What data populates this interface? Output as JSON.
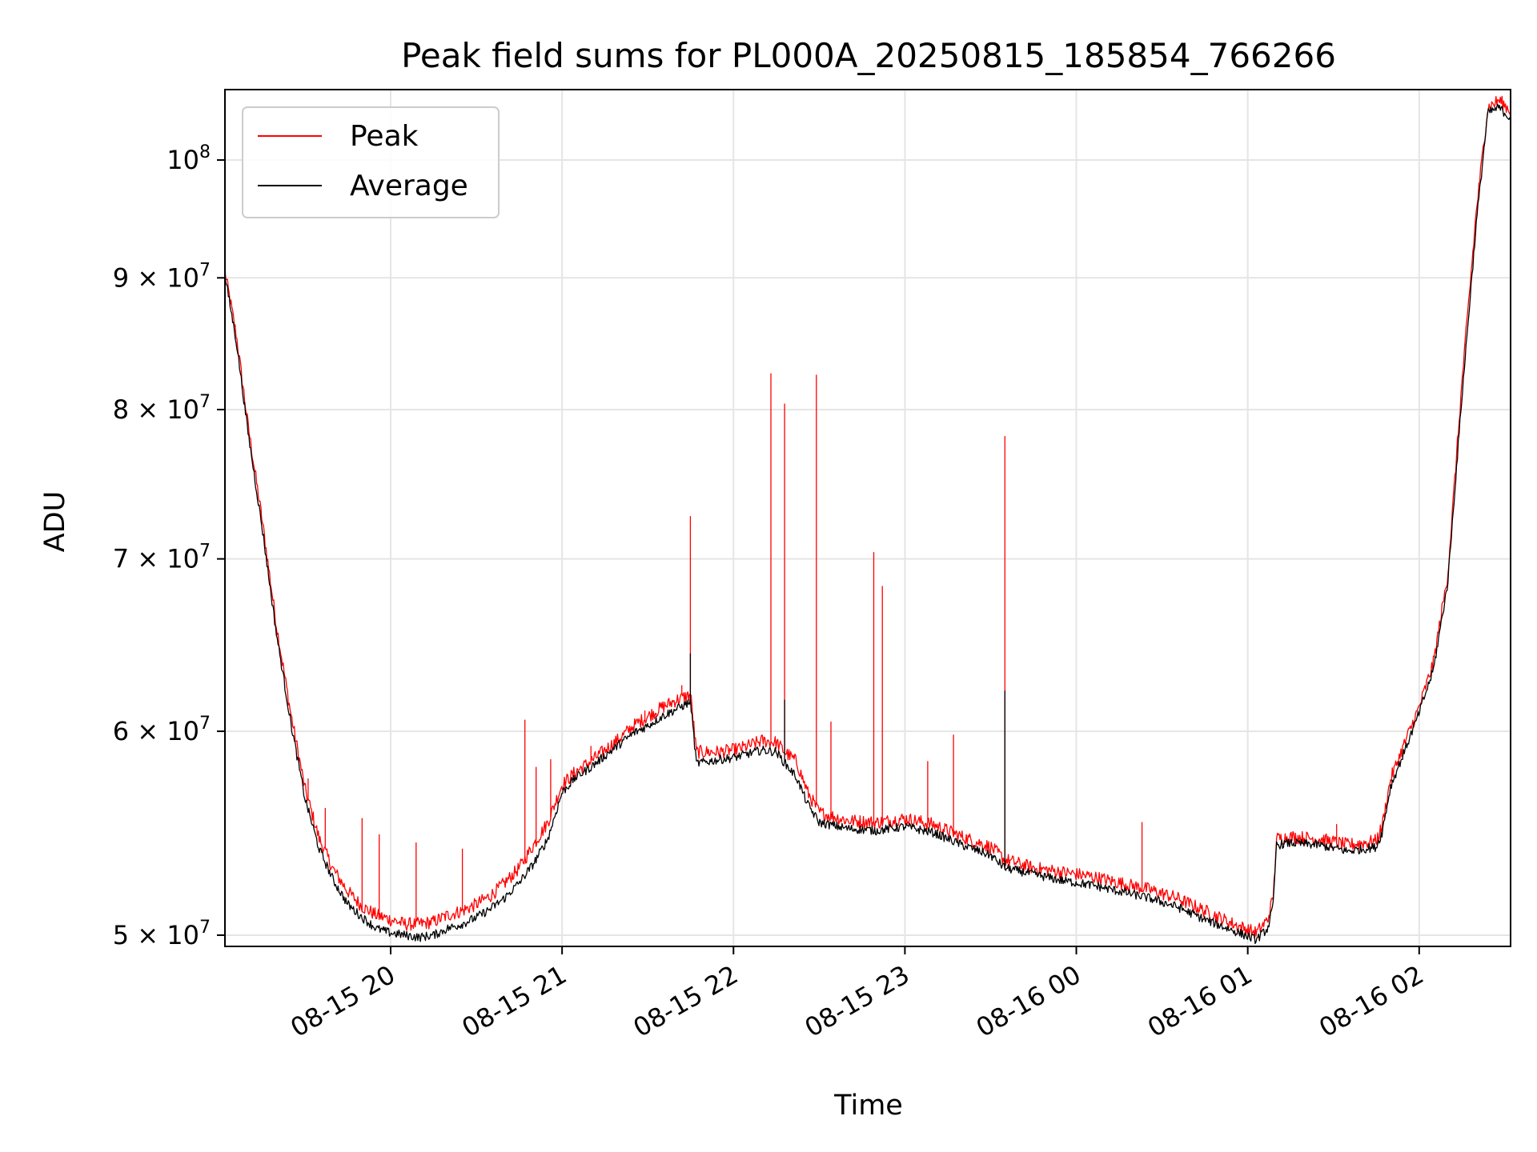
{
  "chart_data": {
    "type": "line",
    "title": "Peak field sums for PL000A_20250815_185854_766266",
    "xlabel": "Time",
    "ylabel": "ADU",
    "yscale": "log",
    "xlim": [
      "2025-08-15 19:02",
      "2025-08-16 02:32"
    ],
    "ylim": [
      49500000,
      106500000
    ],
    "grid": true,
    "legend_position": "top-left",
    "x_ticks": [
      {
        "t": "2025-08-15 20:00",
        "label": "08-15 20"
      },
      {
        "t": "2025-08-15 21:00",
        "label": "08-15 21"
      },
      {
        "t": "2025-08-15 22:00",
        "label": "08-15 22"
      },
      {
        "t": "2025-08-15 23:00",
        "label": "08-15 23"
      },
      {
        "t": "2025-08-16 00:00",
        "label": "08-16 00"
      },
      {
        "t": "2025-08-16 01:00",
        "label": "08-16 01"
      },
      {
        "t": "2025-08-16 02:00",
        "label": "08-16 02"
      }
    ],
    "y_ticks": [
      {
        "value": 50000000,
        "mantissa": "5",
        "exp": "7"
      },
      {
        "value": 60000000,
        "mantissa": "6",
        "exp": "7"
      },
      {
        "value": 70000000,
        "mantissa": "7",
        "exp": "7"
      },
      {
        "value": 80000000,
        "mantissa": "8",
        "exp": "7"
      },
      {
        "value": 90000000,
        "mantissa": "9",
        "exp": "7"
      },
      {
        "value": 100000000,
        "mantissa": "",
        "exp": "8"
      }
    ],
    "series": [
      {
        "name": "Peak",
        "color": "#ff0000",
        "points": [
          [
            "2025-08-15 19:02",
            90500000
          ],
          [
            "2025-08-15 19:06",
            85500000
          ],
          [
            "2025-08-15 19:10",
            79000000
          ],
          [
            "2025-08-15 19:15",
            72500000
          ],
          [
            "2025-08-15 19:20",
            66000000
          ],
          [
            "2025-08-15 19:25",
            61000000
          ],
          [
            "2025-08-15 19:30",
            57000000
          ],
          [
            "2025-08-15 19:35",
            54500000
          ],
          [
            "2025-08-15 19:40",
            53000000
          ],
          [
            "2025-08-15 19:45",
            52000000
          ],
          [
            "2025-08-15 19:50",
            51300000
          ],
          [
            "2025-08-15 19:55",
            50900000
          ],
          [
            "2025-08-15 20:00",
            50700000
          ],
          [
            "2025-08-15 20:05",
            50500000
          ],
          [
            "2025-08-15 20:10",
            50500000
          ],
          [
            "2025-08-15 20:15",
            50600000
          ],
          [
            "2025-08-15 20:20",
            50900000
          ],
          [
            "2025-08-15 20:25",
            51100000
          ],
          [
            "2025-08-15 20:30",
            51400000
          ],
          [
            "2025-08-15 20:35",
            51800000
          ],
          [
            "2025-08-15 20:40",
            52400000
          ],
          [
            "2025-08-15 20:45",
            53100000
          ],
          [
            "2025-08-15 20:50",
            54200000
          ],
          [
            "2025-08-15 20:55",
            55300000
          ],
          [
            "2025-08-15 21:00",
            57200000
          ],
          [
            "2025-08-15 21:05",
            57900000
          ],
          [
            "2025-08-15 21:10",
            58400000
          ],
          [
            "2025-08-15 21:15",
            59000000
          ],
          [
            "2025-08-15 21:20",
            59600000
          ],
          [
            "2025-08-15 21:25",
            60300000
          ],
          [
            "2025-08-15 21:30",
            60800000
          ],
          [
            "2025-08-15 21:35",
            61300000
          ],
          [
            "2025-08-15 21:40",
            61700000
          ],
          [
            "2025-08-15 21:45",
            62000000
          ],
          [
            "2025-08-15 21:47",
            58900000
          ],
          [
            "2025-08-15 21:55",
            58900000
          ],
          [
            "2025-08-15 22:00",
            59000000
          ],
          [
            "2025-08-15 22:05",
            59200000
          ],
          [
            "2025-08-15 22:10",
            59500000
          ],
          [
            "2025-08-15 22:15",
            59400000
          ],
          [
            "2025-08-15 22:18",
            58900000
          ],
          [
            "2025-08-15 22:22",
            58400000
          ],
          [
            "2025-08-15 22:26",
            56800000
          ],
          [
            "2025-08-15 22:30",
            55800000
          ],
          [
            "2025-08-15 22:40",
            55400000
          ],
          [
            "2025-08-15 22:50",
            55300000
          ],
          [
            "2025-08-15 23:00",
            55500000
          ],
          [
            "2025-08-15 23:10",
            55200000
          ],
          [
            "2025-08-15 23:20",
            54600000
          ],
          [
            "2025-08-15 23:30",
            54100000
          ],
          [
            "2025-08-15 23:35",
            53500000
          ],
          [
            "2025-08-15 23:45",
            53100000
          ],
          [
            "2025-08-15 23:55",
            52900000
          ],
          [
            "2025-08-16 00:05",
            52700000
          ],
          [
            "2025-08-16 00:15",
            52400000
          ],
          [
            "2025-08-16 00:25",
            52100000
          ],
          [
            "2025-08-16 00:35",
            51700000
          ],
          [
            "2025-08-16 00:45",
            51100000
          ],
          [
            "2025-08-16 00:55",
            50500000
          ],
          [
            "2025-08-16 01:03",
            50100000
          ],
          [
            "2025-08-16 01:07",
            50700000
          ],
          [
            "2025-08-16 01:09",
            51800000
          ],
          [
            "2025-08-16 01:10",
            54500000
          ],
          [
            "2025-08-16 01:15",
            54600000
          ],
          [
            "2025-08-16 01:25",
            54500000
          ],
          [
            "2025-08-16 01:35",
            54200000
          ],
          [
            "2025-08-16 01:45",
            54400000
          ],
          [
            "2025-08-16 01:47",
            55100000
          ],
          [
            "2025-08-16 01:50",
            57500000
          ],
          [
            "2025-08-16 01:55",
            59400000
          ],
          [
            "2025-08-16 02:00",
            61300000
          ],
          [
            "2025-08-16 02:05",
            63800000
          ],
          [
            "2025-08-16 02:10",
            69000000
          ],
          [
            "2025-08-16 02:15",
            82000000
          ],
          [
            "2025-08-16 02:20",
            95500000
          ],
          [
            "2025-08-16 02:24",
            104800000
          ],
          [
            "2025-08-16 02:28",
            105500000
          ],
          [
            "2025-08-16 02:32",
            104500000
          ]
        ],
        "spikes": [
          [
            "2025-08-15 19:31",
            57500000
          ],
          [
            "2025-08-15 19:37",
            56000000
          ],
          [
            "2025-08-15 19:50",
            55500000
          ],
          [
            "2025-08-15 19:56",
            54700000
          ],
          [
            "2025-08-15 20:09",
            54300000
          ],
          [
            "2025-08-15 20:25",
            54000000
          ],
          [
            "2025-08-15 20:47",
            60600000
          ],
          [
            "2025-08-15 20:51",
            58100000
          ],
          [
            "2025-08-15 20:56",
            58500000
          ],
          [
            "2025-08-15 21:10",
            59200000
          ],
          [
            "2025-08-15 21:29",
            61100000
          ],
          [
            "2025-08-15 21:42",
            62500000
          ],
          [
            "2025-08-15 21:45",
            72700000
          ],
          [
            "2025-08-15 22:13",
            82600000
          ],
          [
            "2025-08-15 22:18",
            80400000
          ],
          [
            "2025-08-15 22:29",
            82500000
          ],
          [
            "2025-08-15 22:34",
            60500000
          ],
          [
            "2025-08-15 22:49",
            70400000
          ],
          [
            "2025-08-15 22:52",
            68300000
          ],
          [
            "2025-08-15 23:08",
            58400000
          ],
          [
            "2025-08-15 23:17",
            59800000
          ],
          [
            "2025-08-15 23:35",
            78100000
          ],
          [
            "2025-08-16 00:23",
            55300000
          ],
          [
            "2025-08-16 01:31",
            55200000
          ]
        ]
      },
      {
        "name": "Average",
        "color": "#000000",
        "points": [
          [
            "2025-08-15 19:02",
            90200000
          ],
          [
            "2025-08-15 19:06",
            85000000
          ],
          [
            "2025-08-15 19:10",
            78500000
          ],
          [
            "2025-08-15 19:15",
            72000000
          ],
          [
            "2025-08-15 19:20",
            65500000
          ],
          [
            "2025-08-15 19:25",
            60500000
          ],
          [
            "2025-08-15 19:30",
            56500000
          ],
          [
            "2025-08-15 19:35",
            54000000
          ],
          [
            "2025-08-15 19:40",
            52500000
          ],
          [
            "2025-08-15 19:45",
            51400000
          ],
          [
            "2025-08-15 19:50",
            50800000
          ],
          [
            "2025-08-15 19:55",
            50300000
          ],
          [
            "2025-08-15 20:00",
            50100000
          ],
          [
            "2025-08-15 20:05",
            50000000
          ],
          [
            "2025-08-15 20:10",
            49900000
          ],
          [
            "2025-08-15 20:15",
            50000000
          ],
          [
            "2025-08-15 20:20",
            50300000
          ],
          [
            "2025-08-15 20:25",
            50500000
          ],
          [
            "2025-08-15 20:30",
            50800000
          ],
          [
            "2025-08-15 20:35",
            51200000
          ],
          [
            "2025-08-15 20:40",
            51700000
          ],
          [
            "2025-08-15 20:45",
            52400000
          ],
          [
            "2025-08-15 20:50",
            53300000
          ],
          [
            "2025-08-15 20:55",
            54500000
          ],
          [
            "2025-08-15 21:00",
            56800000
          ],
          [
            "2025-08-15 21:05",
            57600000
          ],
          [
            "2025-08-15 21:10",
            58100000
          ],
          [
            "2025-08-15 21:15",
            58700000
          ],
          [
            "2025-08-15 21:20",
            59300000
          ],
          [
            "2025-08-15 21:25",
            59900000
          ],
          [
            "2025-08-15 21:30",
            60300000
          ],
          [
            "2025-08-15 21:35",
            60800000
          ],
          [
            "2025-08-15 21:40",
            61200000
          ],
          [
            "2025-08-15 21:45",
            61600000
          ],
          [
            "2025-08-15 21:47",
            58300000
          ],
          [
            "2025-08-15 21:55",
            58500000
          ],
          [
            "2025-08-15 22:00",
            58600000
          ],
          [
            "2025-08-15 22:05",
            58800000
          ],
          [
            "2025-08-15 22:10",
            59000000
          ],
          [
            "2025-08-15 22:15",
            58900000
          ],
          [
            "2025-08-15 22:18",
            58300000
          ],
          [
            "2025-08-15 22:22",
            57600000
          ],
          [
            "2025-08-15 22:26",
            56200000
          ],
          [
            "2025-08-15 22:30",
            55300000
          ],
          [
            "2025-08-15 22:40",
            55000000
          ],
          [
            "2025-08-15 22:50",
            54900000
          ],
          [
            "2025-08-15 23:00",
            55100000
          ],
          [
            "2025-08-15 23:10",
            54800000
          ],
          [
            "2025-08-15 23:20",
            54200000
          ],
          [
            "2025-08-15 23:30",
            53700000
          ],
          [
            "2025-08-15 23:35",
            53100000
          ],
          [
            "2025-08-15 23:45",
            52800000
          ],
          [
            "2025-08-15 23:55",
            52500000
          ],
          [
            "2025-08-16 00:05",
            52300000
          ],
          [
            "2025-08-16 00:15",
            52000000
          ],
          [
            "2025-08-16 00:25",
            51700000
          ],
          [
            "2025-08-16 00:35",
            51300000
          ],
          [
            "2025-08-16 00:45",
            50700000
          ],
          [
            "2025-08-16 00:55",
            50200000
          ],
          [
            "2025-08-16 01:03",
            49800000
          ],
          [
            "2025-08-16 01:07",
            50300000
          ],
          [
            "2025-08-16 01:09",
            51400000
          ],
          [
            "2025-08-16 01:10",
            54200000
          ],
          [
            "2025-08-16 01:15",
            54300000
          ],
          [
            "2025-08-16 01:25",
            54200000
          ],
          [
            "2025-08-16 01:35",
            53900000
          ],
          [
            "2025-08-16 01:45",
            54100000
          ],
          [
            "2025-08-16 01:47",
            54800000
          ],
          [
            "2025-08-16 01:50",
            57100000
          ],
          [
            "2025-08-16 01:55",
            59000000
          ],
          [
            "2025-08-16 02:00",
            61000000
          ],
          [
            "2025-08-16 02:05",
            63400000
          ],
          [
            "2025-08-16 02:10",
            68500000
          ],
          [
            "2025-08-16 02:15",
            81000000
          ],
          [
            "2025-08-16 02:20",
            94500000
          ],
          [
            "2025-08-16 02:24",
            104300000
          ],
          [
            "2025-08-16 02:28",
            104800000
          ],
          [
            "2025-08-16 02:32",
            103800000
          ]
        ],
        "spikes": [
          [
            "2025-08-15 21:45",
            64300000
          ],
          [
            "2025-08-15 22:18",
            61700000
          ],
          [
            "2025-08-15 23:35",
            62200000
          ]
        ]
      }
    ]
  }
}
